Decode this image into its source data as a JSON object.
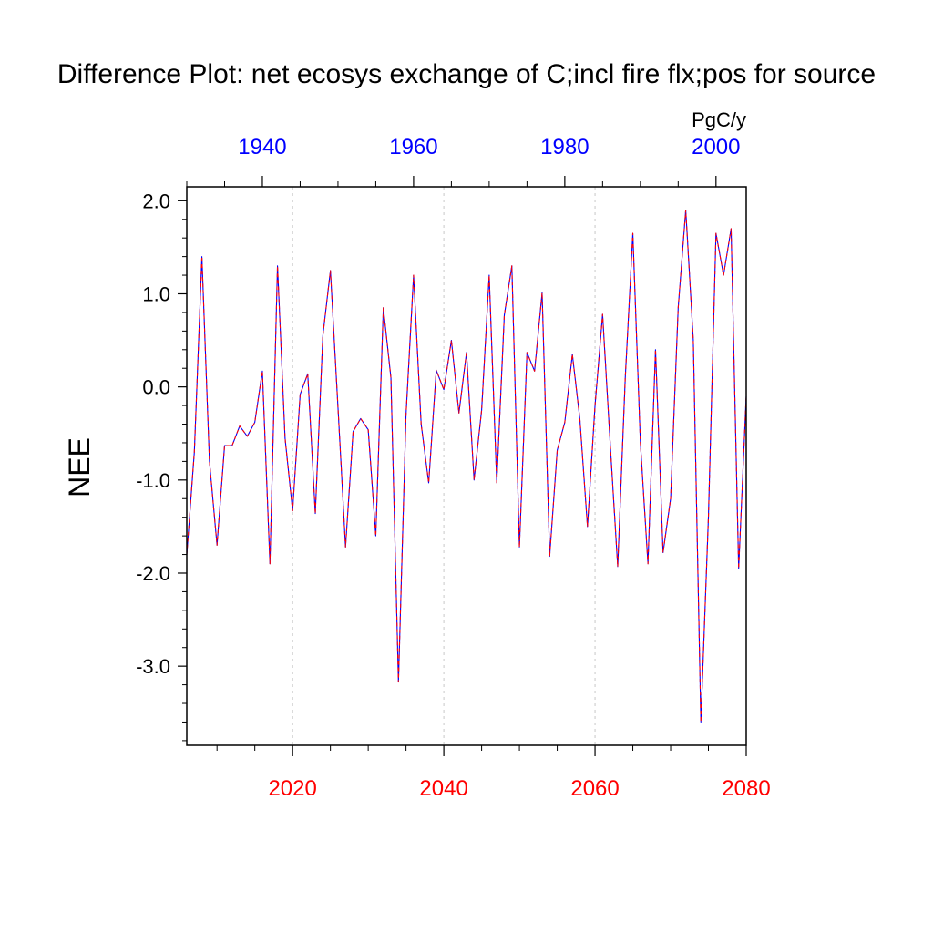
{
  "chart_data": {
    "type": "line",
    "title": "Difference Plot: net ecosys exchange of C;incl fire flx;pos for source",
    "ylabel": "NEE",
    "units": "PgC/y",
    "ylim": [
      -3.85,
      2.15
    ],
    "y_ticks": [
      "2.0",
      "1.0",
      "0.0",
      "-1.0",
      "-2.0",
      "-3.0"
    ],
    "y_tick_values": [
      2,
      1,
      0,
      -1,
      -2,
      -3
    ],
    "x_bottom": {
      "range": [
        2006,
        2080
      ],
      "ticks": [
        "2020",
        "2040",
        "2060",
        "2080"
      ],
      "tick_values": [
        2020,
        2040,
        2060,
        2080
      ],
      "color": "#ff0000"
    },
    "x_top": {
      "range": [
        1930,
        2004
      ],
      "ticks": [
        "1940",
        "1960",
        "1980",
        "2000"
      ],
      "tick_values": [
        1940,
        1960,
        1980,
        2000
      ],
      "color": "#0000ff"
    },
    "grid": "vertical dashed at bottom-axis major ticks",
    "x": [
      2006,
      2007,
      2008,
      2009,
      2010,
      2011,
      2012,
      2013,
      2014,
      2015,
      2016,
      2017,
      2018,
      2019,
      2020,
      2021,
      2022,
      2023,
      2024,
      2025,
      2026,
      2027,
      2028,
      2029,
      2030,
      2031,
      2032,
      2033,
      2034,
      2035,
      2036,
      2037,
      2038,
      2039,
      2040,
      2041,
      2042,
      2043,
      2044,
      2045,
      2046,
      2047,
      2048,
      2049,
      2050,
      2051,
      2052,
      2053,
      2054,
      2055,
      2056,
      2057,
      2058,
      2059,
      2060,
      2061,
      2062,
      2063,
      2064,
      2065,
      2066,
      2067,
      2068,
      2069,
      2070,
      2071,
      2072,
      2073,
      2074,
      2075,
      2076,
      2077,
      2078,
      2079,
      2080
    ],
    "series": [
      {
        "color": "#0000ff",
        "dash": "solid",
        "values": [
          -1.8,
          -0.7,
          1.4,
          -0.8,
          -1.7,
          -0.63,
          -0.63,
          -0.42,
          -0.53,
          -0.38,
          0.17,
          -1.9,
          1.3,
          -0.55,
          -1.33,
          -0.08,
          0.14,
          -1.36,
          0.55,
          1.25,
          -0.22,
          -1.72,
          -0.48,
          -0.34,
          -0.46,
          -1.6,
          0.85,
          0.1,
          -3.17,
          -0.3,
          1.2,
          -0.4,
          -1.03,
          0.18,
          -0.03,
          0.5,
          -0.28,
          0.37,
          -1.0,
          -0.25,
          1.2,
          -1.03,
          0.77,
          1.3,
          -1.72,
          0.37,
          0.17,
          1.01,
          -1.82,
          -0.68,
          -0.38,
          0.35,
          -0.35,
          -1.5,
          -0.2,
          0.78,
          -0.6,
          -1.93,
          0.1,
          1.65,
          -0.6,
          -1.9,
          0.4,
          -1.78,
          -1.2,
          0.85,
          1.9,
          0.5,
          -3.6,
          -1.4,
          1.65,
          1.2,
          1.7,
          -1.95,
          -0.1
        ]
      },
      {
        "color": "#ff0000",
        "dash": "dashed",
        "values": [
          -1.8,
          -0.7,
          1.4,
          -0.8,
          -1.7,
          -0.63,
          -0.63,
          -0.42,
          -0.53,
          -0.38,
          0.17,
          -1.9,
          1.3,
          -0.55,
          -1.33,
          -0.08,
          0.14,
          -1.36,
          0.55,
          1.25,
          -0.22,
          -1.72,
          -0.48,
          -0.34,
          -0.46,
          -1.6,
          0.85,
          0.1,
          -3.17,
          -0.3,
          1.2,
          -0.4,
          -1.03,
          0.18,
          -0.03,
          0.5,
          -0.28,
          0.37,
          -1.0,
          -0.25,
          1.2,
          -1.03,
          0.77,
          1.3,
          -1.72,
          0.37,
          0.17,
          1.01,
          -1.82,
          -0.68,
          -0.38,
          0.35,
          -0.35,
          -1.5,
          -0.2,
          0.78,
          -0.6,
          -1.93,
          0.1,
          1.65,
          -0.6,
          -1.9,
          0.4,
          -1.78,
          -1.2,
          0.85,
          1.9,
          0.5,
          -3.6,
          -1.4,
          1.65,
          1.2,
          1.7,
          -1.95,
          -0.1
        ]
      }
    ]
  }
}
